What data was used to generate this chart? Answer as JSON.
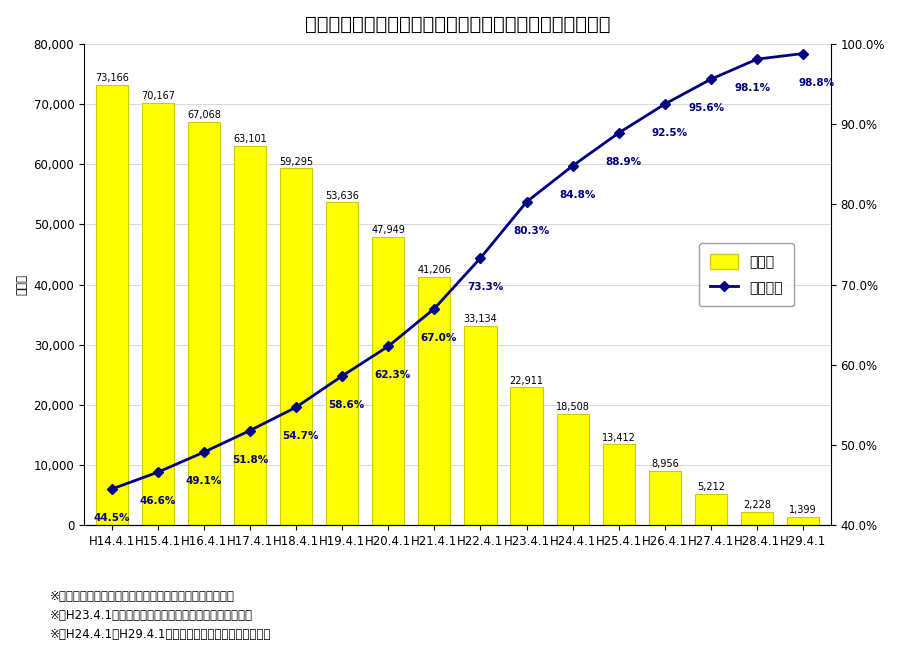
{
  "title": "耐震化率、耐震性がない建物の残棟数の推移（小中学校）",
  "ylabel_left": "（棟）",
  "categories": [
    "H14.4.1",
    "H15.4.1",
    "H16.4.1",
    "H17.4.1",
    "H18.4.1",
    "H19.4.1",
    "H20.4.1",
    "H21.4.1",
    "H22.4.1",
    "H23.4.1",
    "H24.4.1",
    "H25.4.1",
    "H26.4.1",
    "H27.4.1",
    "H28.4.1",
    "H29.4.1"
  ],
  "bar_values": [
    73166,
    70167,
    67068,
    63101,
    59295,
    53636,
    47949,
    41206,
    33134,
    22911,
    18508,
    13412,
    8956,
    5212,
    2228,
    1399
  ],
  "line_values": [
    44.5,
    46.6,
    49.1,
    51.8,
    54.7,
    58.6,
    62.3,
    67.0,
    73.3,
    80.3,
    84.8,
    88.9,
    92.5,
    95.6,
    98.1,
    98.8
  ],
  "bar_labels": [
    "73,166",
    "70,167",
    "67,068",
    "63,101",
    "59,295",
    "53,636",
    "47,949",
    "41,206",
    "33,134",
    "22,911",
    "18,508",
    "13,412",
    "8,956",
    "5,212",
    "2,228",
    "1,399"
  ],
  "line_labels": [
    "44.5%",
    "46.6%",
    "49.1%",
    "51.8%",
    "54.7%",
    "58.6%",
    "62.3%",
    "67.0%",
    "73.3%",
    "80.3%",
    "84.8%",
    "88.9%",
    "92.5%",
    "95.6%",
    "98.1%",
    "98.8%"
  ],
  "bar_color": "#FFFF00",
  "bar_edge_color": "#CCCC00",
  "line_color": "#000080",
  "line_marker": "D",
  "ylim_left": [
    0,
    80000
  ],
  "ylim_right": [
    40.0,
    100.0
  ],
  "yticks_left": [
    0,
    10000,
    20000,
    30000,
    40000,
    50000,
    60000,
    70000,
    80000
  ],
  "yticks_right": [
    40.0,
    50.0,
    60.0,
    70.0,
    80.0,
    90.0,
    100.0
  ],
  "legend_labels": [
    "残棟数",
    "耐震化率"
  ],
  "footnotes": [
    "※　耐震化率：全建物のうち、耐震性がある棟数の割合。",
    "※　H23.4.1については岩手県、宮城県、福島県を除く。",
    "※　H24.4.1〜H29.4.1については福島県の一部を除く。"
  ],
  "background_color": "#ffffff",
  "title_fontsize": 14,
  "axis_fontsize": 8.5,
  "label_fontsize": 7.5,
  "footnote_fontsize": 8.5
}
